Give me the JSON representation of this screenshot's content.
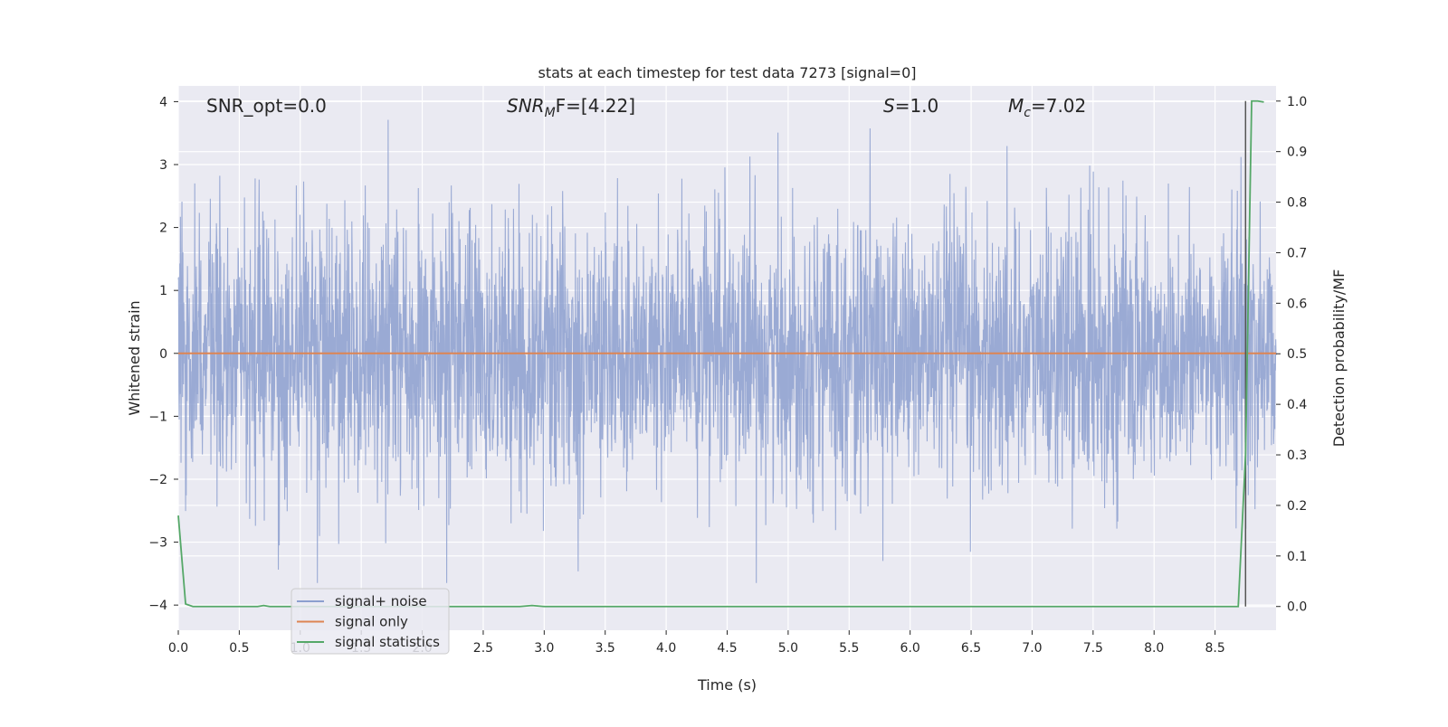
{
  "chart_data": {
    "type": "line",
    "title": "stats at each timestep for test data 7273 [signal=0]",
    "xlabel": "Time (s)",
    "ylabel": "Whitened strain",
    "ylabel_right": "Detection probability/MF",
    "xlim": [
      0.0,
      9.0
    ],
    "ylim": [
      -4.4,
      4.25
    ],
    "ylim_right": [
      -0.047,
      1.03
    ],
    "x_ticks": [
      0.0,
      0.5,
      1.0,
      1.5,
      2.0,
      2.5,
      3.0,
      3.5,
      4.0,
      4.5,
      5.0,
      5.5,
      6.0,
      6.5,
      7.0,
      7.5,
      8.0,
      8.5
    ],
    "x_tick_labels": [
      "0.0",
      "0.5",
      "1.0",
      "1.5",
      "2.0",
      "2.5",
      "3.0",
      "3.5",
      "4.0",
      "4.5",
      "5.0",
      "5.5",
      "6.0",
      "6.5",
      "7.0",
      "7.5",
      "8.0",
      "8.5"
    ],
    "y_ticks": [
      -4,
      -3,
      -2,
      -1,
      0,
      1,
      2,
      3,
      4
    ],
    "y_tick_labels": [
      "−4",
      "−3",
      "−2",
      "−1",
      "0",
      "1",
      "2",
      "3",
      "4"
    ],
    "y_ticks_right": [
      0.0,
      0.1,
      0.2,
      0.3,
      0.4,
      0.5,
      0.6,
      0.7,
      0.8,
      0.9,
      1.0
    ],
    "y_tick_labels_right": [
      "0.0",
      "0.1",
      "0.2",
      "0.3",
      "0.4",
      "0.5",
      "0.6",
      "0.7",
      "0.8",
      "0.9",
      "1.0"
    ],
    "grid": true,
    "legend_position": "lower-left",
    "annotations": {
      "snr_opt": "SNR_opt=0.0",
      "snr_mf_prefix": "SNR",
      "snr_mf_sub": "M",
      "snr_mf_suffix": "F=[4.22]",
      "s_label": "S",
      "s_value": "=1.0",
      "mc_label": "M",
      "mc_sub": "c",
      "mc_value": "=7.02"
    },
    "vertical_marker_x": 8.75,
    "series": [
      {
        "name": "signal+ noise",
        "color": "#8c9fcf",
        "axis": "left",
        "kind": "noise",
        "samples": 3600,
        "envelope_std": 1.0,
        "max_value": 3.85,
        "min_value": -3.65
      },
      {
        "name": "signal only",
        "color": "#dd8452",
        "axis": "left",
        "x": [
          0.0,
          9.0
        ],
        "y": [
          0.0,
          0.0
        ]
      },
      {
        "name": "signal statistics",
        "color": "#55a868",
        "axis": "right",
        "x": [
          0.0,
          0.06,
          0.12,
          0.5,
          0.65,
          0.7,
          0.75,
          2.5,
          2.8,
          2.9,
          3.0,
          8.5,
          8.69,
          8.75,
          8.8,
          8.85,
          8.9
        ],
        "y": [
          0.18,
          0.005,
          0.0,
          0.0,
          0.0,
          0.002,
          0.0,
          0.0,
          0.0,
          0.002,
          0.0,
          0.0,
          0.0,
          0.3,
          1.0,
          1.0,
          0.998
        ]
      }
    ]
  },
  "colors": {
    "plot_background": "#eaeaf2",
    "grid": "#ffffff",
    "marker_line": "#555555",
    "legend_background": "#eaeaf2",
    "legend_border": "#cccccc"
  }
}
